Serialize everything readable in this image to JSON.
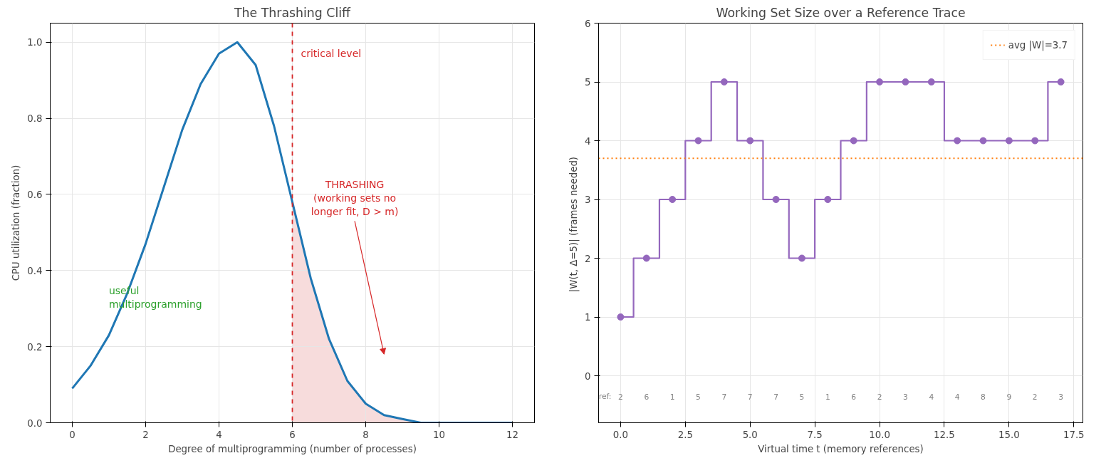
{
  "chart_data": [
    {
      "type": "line",
      "title": "The Thrashing Cliff",
      "xlabel": "Degree of multiprogramming (number of processes)",
      "ylabel": "CPU utilization (fraction)",
      "x": [
        0,
        0.5,
        1,
        1.5,
        2,
        2.5,
        3,
        3.5,
        4,
        4.5,
        5,
        5.5,
        6,
        6.5,
        7,
        7.5,
        8,
        8.5,
        9,
        9.5,
        10,
        11,
        12
      ],
      "series": [
        {
          "color": "#1f77b4",
          "values": [
            0.09,
            0.15,
            0.23,
            0.34,
            0.47,
            0.62,
            0.77,
            0.89,
            0.97,
            1.0,
            0.94,
            0.78,
            0.58,
            0.38,
            0.22,
            0.11,
            0.05,
            0.02,
            0.01,
            0.0,
            0.0,
            0.0,
            0.0
          ]
        },
        {
          "type": "area",
          "color": "#f7dcdc",
          "x": [
            6,
            6.5,
            7,
            7.5,
            8,
            8.5,
            9,
            9.5,
            10,
            11,
            12
          ],
          "values": [
            0.58,
            0.38,
            0.22,
            0.11,
            0.05,
            0.02,
            0.01,
            0.0,
            0.0,
            0.0,
            0.0
          ]
        }
      ],
      "xlim": [
        -0.6,
        12.6
      ],
      "xticks": [
        0,
        2,
        4,
        6,
        8,
        10,
        12
      ],
      "ylim": [
        0,
        1.05
      ],
      "yticks": [
        {
          "value": 0,
          "label": "0.0"
        },
        {
          "value": 0.2,
          "label": "0.2"
        },
        {
          "value": 0.4,
          "label": "0.4"
        },
        {
          "value": 0.6,
          "label": "0.6"
        },
        {
          "value": 0.8,
          "label": "0.8"
        },
        {
          "value": 1.0,
          "label": "1.0"
        }
      ],
      "grid": true,
      "ref_lines": [
        {
          "axis": "x",
          "value": 6,
          "label": "critical level",
          "color": "#d62728",
          "line_style": "dashed"
        }
      ],
      "annotations": [
        "useful\nmultiprogramming",
        "THRASHING\n(working sets no\nlonger fit, D > m)"
      ]
    },
    {
      "type": "step",
      "title": "Working Set Size over a Reference Trace",
      "xlabel": "Virtual time t (memory references)",
      "ylabel": "|W(t, Δ=5)|  (frames needed)",
      "x": [
        0,
        1,
        2,
        3,
        4,
        5,
        6,
        7,
        8,
        9,
        10,
        11,
        12,
        13,
        14,
        15,
        16,
        17
      ],
      "series": [
        {
          "color": "#9467bd",
          "values": [
            1,
            2,
            3,
            4,
            5,
            4,
            3,
            2,
            3,
            4,
            5,
            5,
            5,
            4,
            4,
            4,
            4,
            5
          ]
        }
      ],
      "marker": "circle",
      "xlim": [
        -0.85,
        17.85
      ],
      "xticks": [
        {
          "value": 0,
          "label": "0.0"
        },
        {
          "value": 2.5,
          "label": "2.5"
        },
        {
          "value": 5,
          "label": "5.0"
        },
        {
          "value": 7.5,
          "label": "7.5"
        },
        {
          "value": 10,
          "label": "10.0"
        },
        {
          "value": 12.5,
          "label": "12.5"
        },
        {
          "value": 15,
          "label": "15.0"
        },
        {
          "value": 17.5,
          "label": "17.5"
        }
      ],
      "ylim": [
        -0.8,
        6
      ],
      "yticks": [
        0,
        1,
        2,
        3,
        4,
        5,
        6
      ],
      "grid": true,
      "legend": "top right",
      "ref_lines": [
        {
          "axis": "y",
          "value": 3.7,
          "label": "avg |W|=3.7",
          "color": "#ff7f0e",
          "line_style": "dotted"
        }
      ],
      "annotations": [
        "ref:",
        "2",
        "6",
        "1",
        "5",
        "7",
        "7",
        "7",
        "5",
        "1",
        "6",
        "2",
        "3",
        "4",
        "4",
        "8",
        "9",
        "2",
        "3"
      ]
    }
  ]
}
